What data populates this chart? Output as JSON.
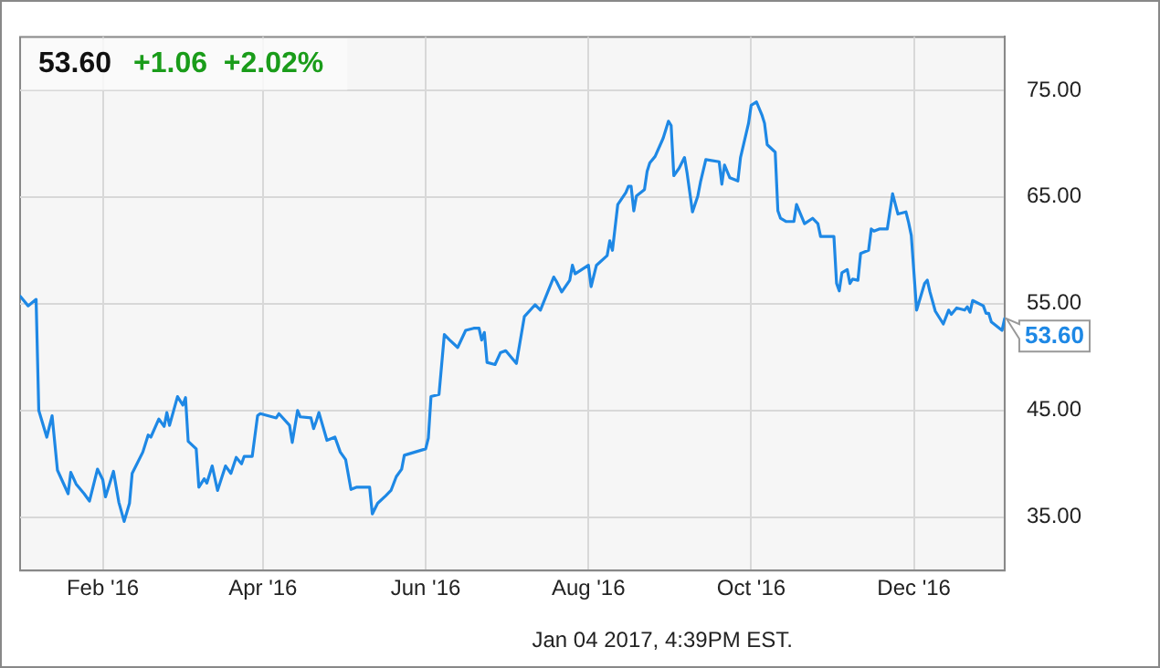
{
  "chart_data": {
    "type": "line",
    "title": "53.60",
    "subtitle": "+1.06  +2.02%",
    "annotations": [
      {
        "text": "53.60",
        "x": "2017-01-04",
        "y": 53.6
      },
      "Jan 04 2017, 4:39PM EST."
    ],
    "xlim": [
      "2016-01-01",
      "2017-01-04"
    ],
    "xticks": [
      {
        "value": "2016-02-01",
        "label": "Feb '16"
      },
      {
        "value": "2016-04-01",
        "label": "Apr '16"
      },
      {
        "value": "2016-06-01",
        "label": "Jun '16"
      },
      {
        "value": "2016-08-01",
        "label": "Aug '16"
      },
      {
        "value": "2016-10-01",
        "label": "Oct '16"
      },
      {
        "value": "2016-12-01",
        "label": "Dec '16"
      }
    ],
    "ylim": [
      30,
      80
    ],
    "yticks": [
      {
        "value": 35,
        "label": "35.00"
      },
      {
        "value": 45,
        "label": "45.00"
      },
      {
        "value": 55,
        "label": "55.00"
      },
      {
        "value": 65,
        "label": "65.00"
      },
      {
        "value": 75,
        "label": "75.00"
      }
    ],
    "grid": true,
    "legend": false,
    "marker": "none",
    "line_style": "solid",
    "series": [
      {
        "color": "#1e88e5",
        "x": [
          "2016-01-01",
          "2016-01-04",
          "2016-01-07",
          "2016-01-08",
          "2016-01-11",
          "2016-01-13",
          "2016-01-15",
          "2016-01-19",
          "2016-01-20",
          "2016-01-22",
          "2016-01-25",
          "2016-01-27",
          "2016-01-30",
          "2016-02-01",
          "2016-02-02",
          "2016-02-05",
          "2016-02-07",
          "2016-02-09",
          "2016-02-11",
          "2016-02-12",
          "2016-02-16",
          "2016-02-18",
          "2016-02-19",
          "2016-02-22",
          "2016-02-24",
          "2016-02-25",
          "2016-02-26",
          "2016-02-29",
          "2016-03-02",
          "2016-03-03",
          "2016-03-04",
          "2016-03-07",
          "2016-03-08",
          "2016-03-10",
          "2016-03-11",
          "2016-03-13",
          "2016-03-15",
          "2016-03-18",
          "2016-03-20",
          "2016-03-22",
          "2016-03-24",
          "2016-03-25",
          "2016-03-28",
          "2016-03-30",
          "2016-03-31",
          "2016-04-06",
          "2016-04-07",
          "2016-04-11",
          "2016-04-12",
          "2016-04-14",
          "2016-04-15",
          "2016-04-19",
          "2016-04-20",
          "2016-04-21",
          "2016-04-22",
          "2016-04-25",
          "2016-04-28",
          "2016-04-30",
          "2016-05-02",
          "2016-05-04",
          "2016-05-06",
          "2016-05-11",
          "2016-05-12",
          "2016-05-14",
          "2016-05-17",
          "2016-05-19",
          "2016-05-21",
          "2016-05-23",
          "2016-05-24",
          "2016-05-28",
          "2016-06-01",
          "2016-06-02",
          "2016-06-03",
          "2016-06-06",
          "2016-06-08",
          "2016-06-10",
          "2016-06-13",
          "2016-06-16",
          "2016-06-19",
          "2016-06-21",
          "2016-06-22",
          "2016-06-23",
          "2016-06-24",
          "2016-06-27",
          "2016-06-29",
          "2016-07-01",
          "2016-07-05",
          "2016-07-08",
          "2016-07-12",
          "2016-07-14",
          "2016-07-19",
          "2016-07-20",
          "2016-07-22",
          "2016-07-25",
          "2016-07-26",
          "2016-07-27",
          "2016-08-01",
          "2016-08-02",
          "2016-08-04",
          "2016-08-08",
          "2016-08-09",
          "2016-08-10",
          "2016-08-12",
          "2016-08-15",
          "2016-08-16",
          "2016-08-17",
          "2016-08-18",
          "2016-08-19",
          "2016-08-22",
          "2016-08-23",
          "2016-08-24",
          "2016-08-26",
          "2016-08-29",
          "2016-08-31",
          "2016-09-01",
          "2016-09-02",
          "2016-09-04",
          "2016-09-06",
          "2016-09-07",
          "2016-09-09",
          "2016-09-11",
          "2016-09-12",
          "2016-09-14",
          "2016-09-19",
          "2016-09-20",
          "2016-09-21",
          "2016-09-23",
          "2016-09-26",
          "2016-09-27",
          "2016-09-30",
          "2016-10-01",
          "2016-10-03",
          "2016-10-05",
          "2016-10-06",
          "2016-10-07",
          "2016-10-10",
          "2016-10-11",
          "2016-10-12",
          "2016-10-14",
          "2016-10-17",
          "2016-10-18",
          "2016-10-21",
          "2016-10-24",
          "2016-10-26",
          "2016-10-27",
          "2016-11-01",
          "2016-11-02",
          "2016-11-03",
          "2016-11-04",
          "2016-11-06",
          "2016-11-07",
          "2016-11-08",
          "2016-11-10",
          "2016-11-11",
          "2016-11-14",
          "2016-11-15",
          "2016-11-16",
          "2016-11-18",
          "2016-11-21",
          "2016-11-23",
          "2016-11-25",
          "2016-11-28",
          "2016-11-29",
          "2016-11-30",
          "2016-12-02",
          "2016-12-05",
          "2016-12-06",
          "2016-12-07",
          "2016-12-09",
          "2016-12-12",
          "2016-12-14",
          "2016-12-15",
          "2016-12-17",
          "2016-12-20",
          "2016-12-21",
          "2016-12-22",
          "2016-12-23",
          "2016-12-27",
          "2016-12-28",
          "2016-12-29",
          "2016-12-30",
          "2017-01-03",
          "2017-01-04"
        ],
        "values": [
          55.7,
          54.8,
          55.4,
          45.0,
          42.5,
          44.5,
          39.4,
          37.2,
          39.2,
          38.1,
          37.2,
          36.5,
          39.5,
          38.5,
          36.9,
          39.3,
          36.4,
          34.6,
          36.3,
          39.1,
          41.1,
          42.7,
          42.5,
          44.2,
          43.5,
          44.8,
          43.6,
          46.3,
          45.5,
          46.2,
          42.1,
          41.4,
          37.8,
          38.6,
          38.2,
          39.8,
          37.5,
          39.8,
          39.1,
          40.6,
          40.0,
          40.7,
          40.7,
          44.5,
          44.7,
          44.3,
          44.7,
          43.6,
          42.0,
          45.0,
          44.4,
          44.3,
          43.3,
          44.0,
          44.8,
          42.2,
          42.5,
          41.1,
          40.4,
          37.6,
          37.8,
          37.8,
          35.3,
          36.3,
          37.0,
          37.5,
          38.8,
          39.5,
          40.8,
          41.1,
          41.4,
          42.4,
          46.3,
          46.5,
          52.1,
          51.6,
          50.9,
          52.5,
          52.7,
          52.7,
          51.6,
          52.3,
          49.5,
          49.3,
          50.4,
          50.6,
          49.4,
          53.8,
          54.9,
          54.4,
          57.5,
          57.1,
          56.1,
          57.2,
          58.6,
          57.8,
          58.6,
          56.6,
          58.6,
          59.5,
          60.9,
          60.0,
          64.3,
          65.4,
          66.0,
          66.0,
          63.7,
          65.1,
          65.7,
          67.4,
          68.2,
          68.8,
          70.5,
          72.1,
          71.7,
          67.0,
          67.7,
          68.7,
          67.2,
          63.6,
          65.1,
          66.4,
          68.5,
          68.3,
          66.2,
          68.0,
          66.8,
          66.5,
          68.7,
          71.9,
          73.6,
          73.9,
          72.7,
          71.9,
          69.9,
          69.2,
          63.7,
          63.0,
          62.7,
          62.7,
          64.3,
          62.5,
          63.0,
          62.5,
          61.3,
          61.3,
          56.9,
          56.2,
          57.9,
          58.2,
          56.9,
          57.3,
          57.2,
          59.7,
          60.0,
          62.0,
          61.8,
          62.0,
          62.0,
          65.3,
          63.4,
          63.6,
          62.6,
          61.4,
          54.4,
          56.9,
          57.2,
          56.1,
          54.3,
          53.1,
          54.4,
          54.0,
          54.6,
          54.4,
          54.7,
          54.2,
          55.3,
          54.8,
          54.1,
          54.1,
          53.3,
          52.5,
          53.6
        ]
      }
    ]
  }
}
